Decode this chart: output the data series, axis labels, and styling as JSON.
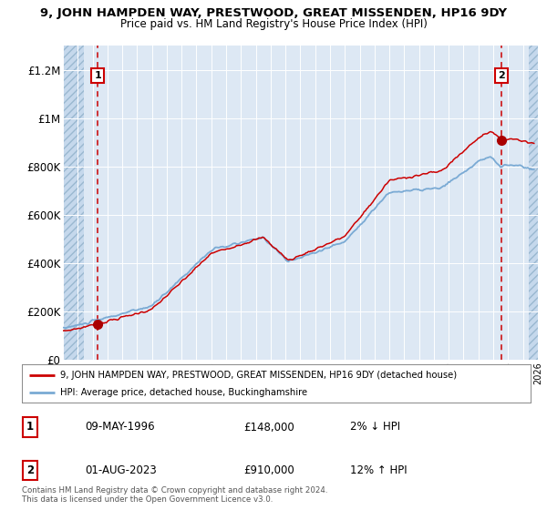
{
  "title_line1": "9, JOHN HAMPDEN WAY, PRESTWOOD, GREAT MISSENDEN, HP16 9DY",
  "title_line2": "Price paid vs. HM Land Registry's House Price Index (HPI)",
  "sale1_date": "09-MAY-1996",
  "sale1_price": 148000,
  "sale1_x": 1996.36,
  "sale1_label": "1",
  "sale2_date": "01-AUG-2023",
  "sale2_price": 910000,
  "sale2_x": 2023.58,
  "sale2_label": "2",
  "legend_line1": "9, JOHN HAMPDEN WAY, PRESTWOOD, GREAT MISSENDEN, HP16 9DY (detached house)",
  "legend_line2": "HPI: Average price, detached house, Buckinghamshire",
  "table_row1": [
    "1",
    "09-MAY-1996",
    "£148,000",
    "2% ↓ HPI"
  ],
  "table_row2": [
    "2",
    "01-AUG-2023",
    "£910,000",
    "12% ↑ HPI"
  ],
  "footer": "Contains HM Land Registry data © Crown copyright and database right 2024.\nThis data is licensed under the Open Government Licence v3.0.",
  "hpi_line_color": "#7aaad4",
  "price_line_color": "#cc0000",
  "marker_color": "#aa0000",
  "bg_color": "#dde8f4",
  "grid_color": "#ffffff",
  "xmin": 1994,
  "xmax": 2026,
  "ymin": 0,
  "ymax": 1300000,
  "hatch_region_left_end": 1995.42,
  "hatch_region_right_start": 2025.42
}
